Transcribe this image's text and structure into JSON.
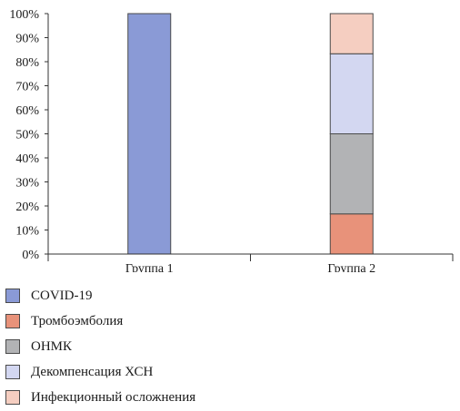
{
  "chart_data": {
    "type": "bar",
    "stacked": true,
    "categories": [
      "Группа 1",
      "Группа 2"
    ],
    "series": [
      {
        "name": "COVID-19",
        "color": "#8a9ad6",
        "values": [
          100,
          0
        ]
      },
      {
        "name": "Тромбоэмболия",
        "color": "#e8927a",
        "values": [
          0,
          16.7
        ]
      },
      {
        "name": "ОНМК",
        "color": "#b2b3b5",
        "values": [
          0,
          33.3
        ]
      },
      {
        "name": "Декомпенсация ХСН",
        "color": "#d3d7f1",
        "values": [
          0,
          33.3
        ]
      },
      {
        "name": "Инфекционный осложнения",
        "color": "#f5cec1",
        "values": [
          0,
          16.7
        ]
      }
    ],
    "yticks": [
      "0%",
      "10%",
      "20%",
      "30%",
      "40%",
      "50%",
      "60%",
      "70%",
      "80%",
      "90%",
      "100%"
    ],
    "ylim": [
      0,
      100
    ],
    "grid": false,
    "legend_position": "bottom-left"
  }
}
